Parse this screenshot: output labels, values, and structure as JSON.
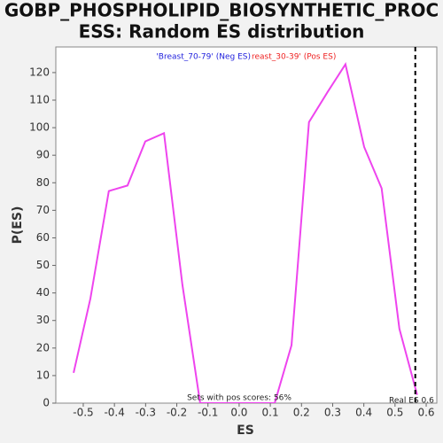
{
  "chart_data": {
    "type": "line",
    "title": [
      "GOBP_PHOSPHOLIPID_BIOSYNTHETIC_PROC",
      "ESS: Random ES distribution"
    ],
    "x_label": "ES",
    "y_label": "P(ES)",
    "series": [
      {
        "name": "Random ES",
        "color": "#ee44ee",
        "x": [
          -0.531,
          -0.477,
          -0.418,
          -0.358,
          -0.301,
          -0.241,
          -0.182,
          -0.125,
          -0.068,
          -0.011,
          0.046,
          0.114,
          0.168,
          0.224,
          0.284,
          0.341,
          0.401,
          0.457,
          0.514,
          0.571
        ],
        "values": [
          11,
          38,
          77,
          79,
          95,
          98,
          43,
          0,
          0,
          0,
          0,
          0,
          21,
          102,
          113,
          123,
          93,
          78,
          27,
          3
        ]
      }
    ],
    "legend_labels": [
      {
        "text": "'Breast_70-79' (Neg ES)",
        "color": "#2222dd"
      },
      {
        "text": "reast_30-39' (Pos ES)",
        "color": "#ee2222"
      }
    ],
    "annotation": "Sets with pos scores: 56%",
    "real_es": 0.565,
    "real_es_label": "Real ES 0.6",
    "xlim": [
      -0.588,
      0.634
    ],
    "ylim": [
      0,
      129.3
    ],
    "xticks": [
      -0.5,
      -0.4,
      -0.3,
      -0.2,
      -0.1,
      {
        "value": 0,
        "label": "0.0"
      },
      0.1,
      0.2,
      0.3,
      0.4,
      0.5,
      0.6
    ],
    "yticks": [
      0,
      10,
      20,
      30,
      40,
      50,
      60,
      70,
      80,
      90,
      100,
      110,
      120
    ]
  }
}
